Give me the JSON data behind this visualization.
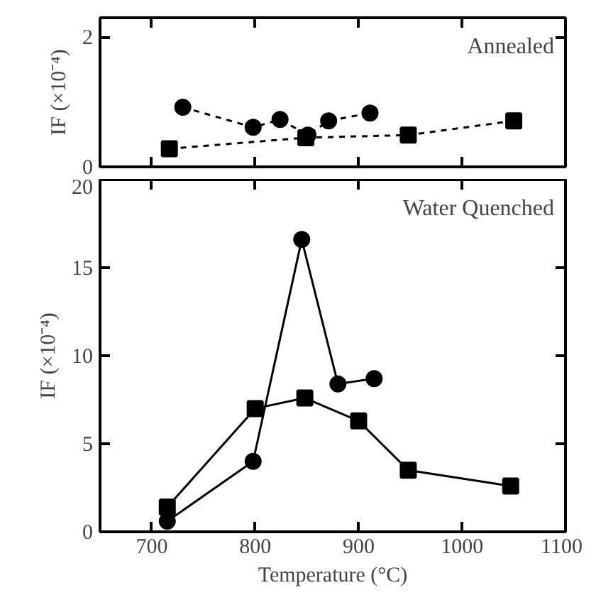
{
  "chart_data": [
    {
      "type": "line",
      "ylabel": "IF (×10⁻⁴)",
      "annotations": [
        "Annealed"
      ],
      "xlim": [
        650,
        1100
      ],
      "xticks": [
        700,
        800,
        900,
        1000,
        1100
      ],
      "ylim": [
        0,
        2.3
      ],
      "yticks": [
        0,
        2
      ],
      "tick_labels": "y",
      "grid": false,
      "line_style": "dashed",
      "series": [
        {
          "color": "#000000",
          "marker": "square",
          "x": [
            717,
            849,
            948,
            1050
          ],
          "values": [
            0.28,
            0.45,
            0.49,
            0.71
          ]
        },
        {
          "color": "#000000",
          "marker": "circle",
          "x": [
            730,
            798,
            824,
            851,
            871,
            911
          ],
          "values": [
            0.92,
            0.61,
            0.73,
            0.49,
            0.71,
            0.83
          ]
        }
      ]
    },
    {
      "type": "line",
      "xlabel": "Temperature (°C)",
      "ylabel": "IF (×10⁻⁴)",
      "annotations": [
        "Water Quenched"
      ],
      "xlim": [
        650,
        1100
      ],
      "xticks": [
        700,
        800,
        900,
        1000,
        1100
      ],
      "ylim": [
        0,
        20
      ],
      "yticks": [
        0,
        5,
        10,
        15,
        20
      ],
      "grid": false,
      "line_style": "solid",
      "series": [
        {
          "color": "#000000",
          "marker": "circle",
          "x": [
            715,
            798,
            845,
            880,
            915
          ],
          "values": [
            0.6,
            4.0,
            16.6,
            8.4,
            8.7
          ]
        },
        {
          "color": "#000000",
          "marker": "square",
          "x": [
            715,
            800,
            848,
            900,
            948,
            1047
          ],
          "values": [
            1.4,
            7.0,
            7.6,
            6.3,
            3.5,
            2.6
          ]
        }
      ]
    }
  ]
}
